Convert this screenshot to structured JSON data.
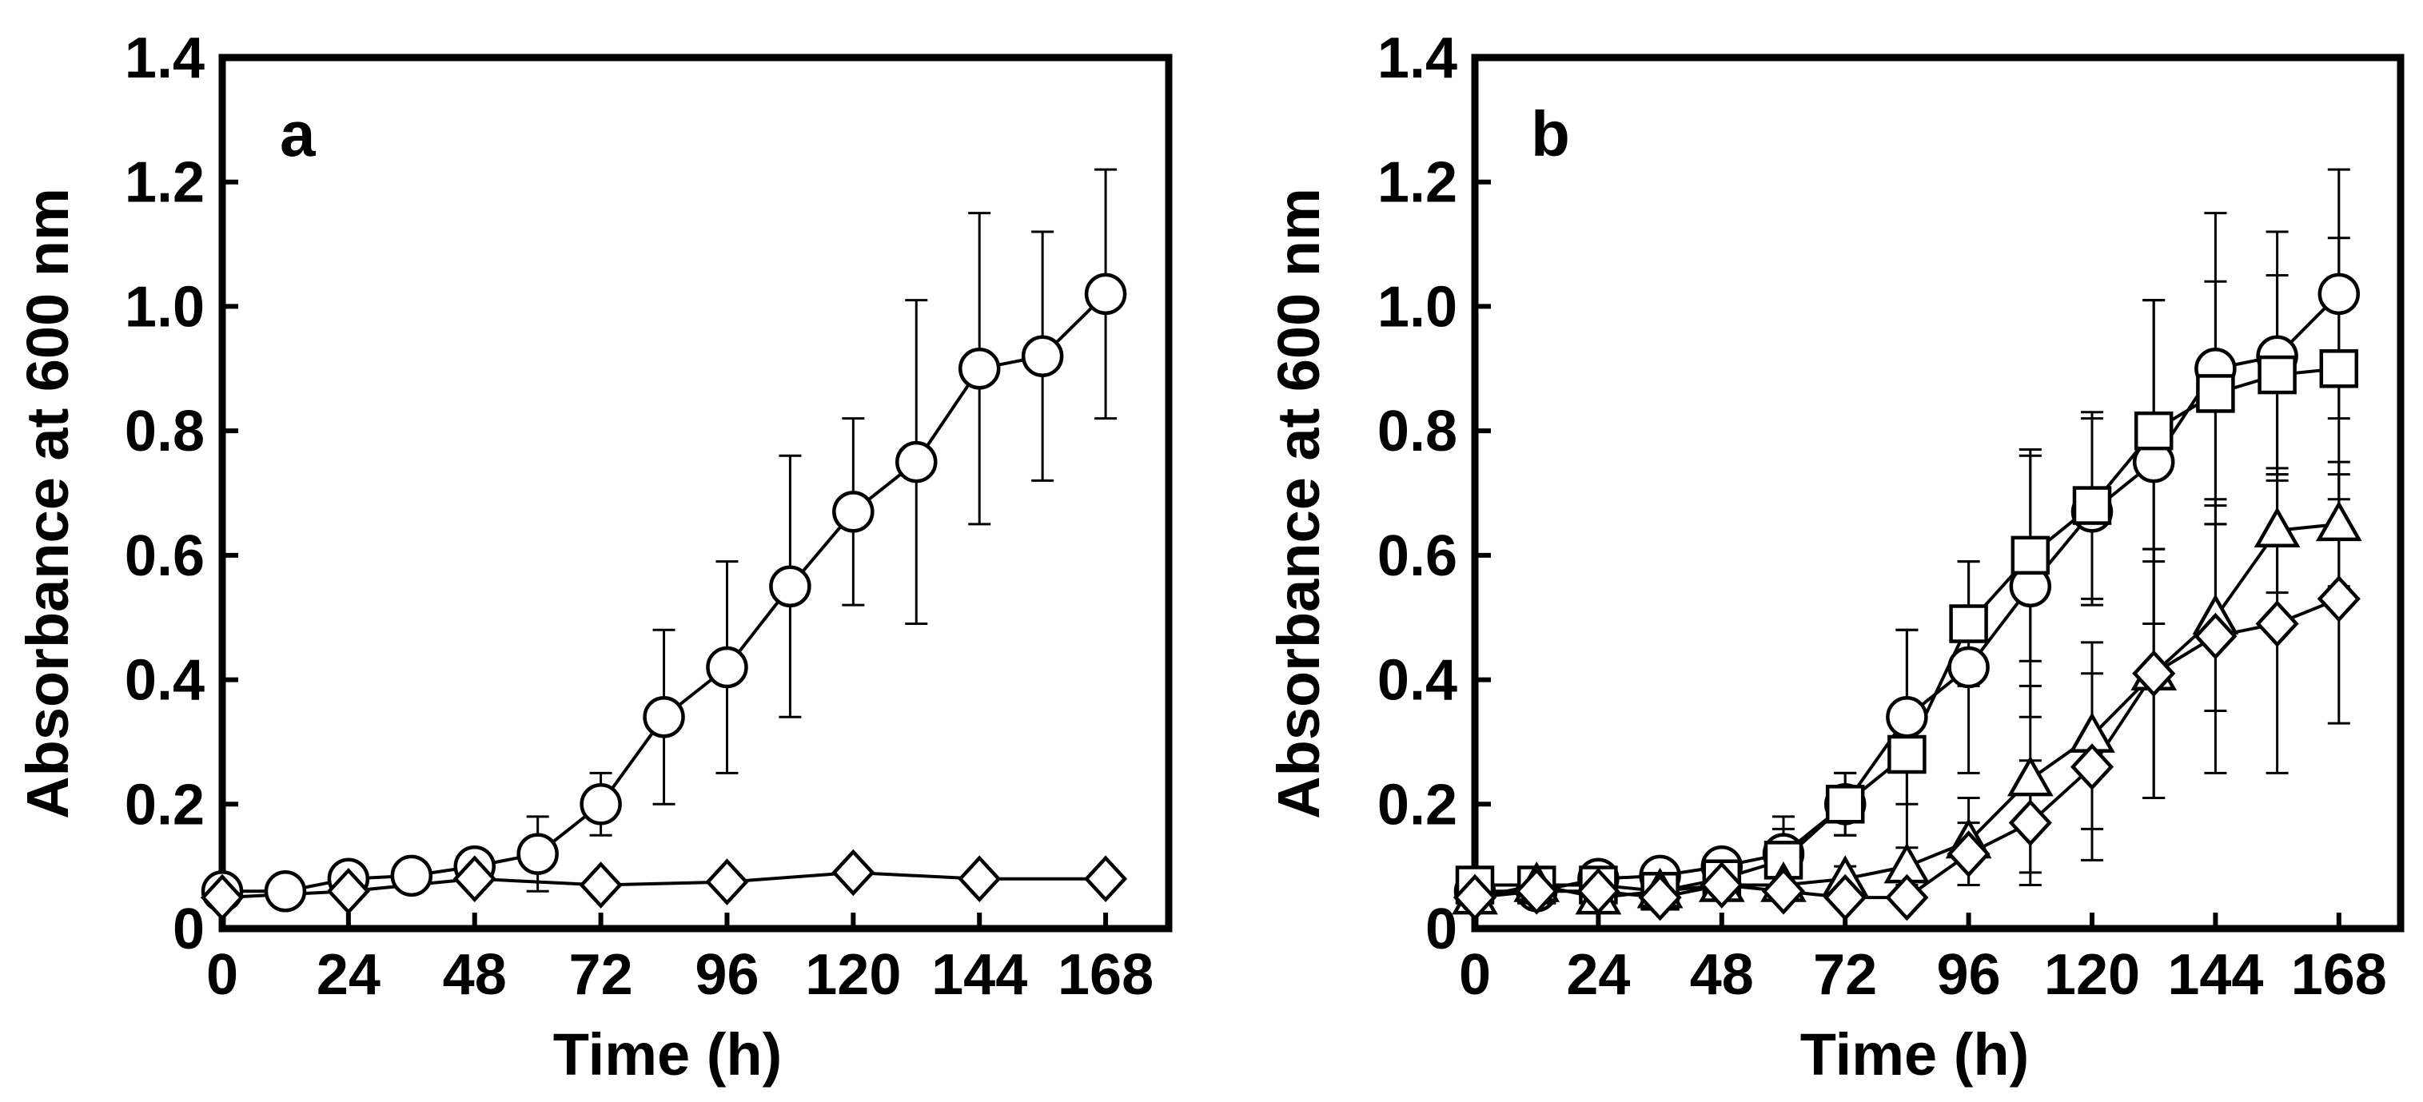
{
  "chart_data": [
    {
      "type": "line",
      "panel": "a",
      "xlabel": "Time (h)",
      "ylabel": "Absorbance at 600 nm",
      "xlim": [
        0,
        180
      ],
      "ylim": [
        0,
        1.4
      ],
      "xticks": [
        0,
        24,
        48,
        72,
        96,
        120,
        144,
        168
      ],
      "xtick_labels": [
        "0",
        "24",
        "48",
        "72",
        "96",
        "120",
        "144",
        "168"
      ],
      "yticks": [
        0,
        0.2,
        0.4,
        0.6,
        0.8,
        1.0,
        1.2,
        1.4
      ],
      "ytick_labels": [
        "0",
        "0.2",
        "0.4",
        "0.6",
        "0.8",
        "1.0",
        "1.2",
        "1.4"
      ],
      "series": [
        {
          "name": "circle",
          "marker": "circle",
          "x": [
            0,
            12,
            24,
            36,
            48,
            60,
            72,
            84,
            96,
            108,
            120,
            132,
            144,
            156,
            168
          ],
          "y": [
            0.06,
            0.06,
            0.08,
            0.085,
            0.1,
            0.12,
            0.2,
            0.34,
            0.42,
            0.55,
            0.67,
            0.75,
            0.9,
            0.92,
            1.02
          ],
          "err": [
            0.01,
            0.01,
            0.01,
            0.01,
            0.02,
            0.06,
            0.05,
            0.14,
            0.17,
            0.21,
            0.15,
            0.26,
            0.25,
            0.2,
            0.2
          ]
        },
        {
          "name": "diamond",
          "marker": "diamond",
          "x": [
            0,
            24,
            48,
            72,
            96,
            120,
            144,
            168
          ],
          "y": [
            0.05,
            0.06,
            0.08,
            0.07,
            0.075,
            0.09,
            0.08,
            0.08
          ],
          "err": [
            0,
            0,
            0,
            0,
            0,
            0,
            0,
            0
          ]
        }
      ]
    },
    {
      "type": "line",
      "panel": "b",
      "xlabel": "Time (h)",
      "ylabel": "Absorbance at 600 nm",
      "xlim": [
        0,
        180
      ],
      "ylim": [
        0,
        1.4
      ],
      "xticks": [
        0,
        24,
        48,
        72,
        96,
        120,
        144,
        168
      ],
      "xtick_labels": [
        "0",
        "24",
        "48",
        "72",
        "96",
        "120",
        "144",
        "168"
      ],
      "yticks": [
        0,
        0.2,
        0.4,
        0.6,
        0.8,
        1.0,
        1.2,
        1.4
      ],
      "ytick_labels": [
        "0",
        "0.2",
        "0.4",
        "0.6",
        "0.8",
        "1.0",
        "1.2",
        "1.4"
      ],
      "series": [
        {
          "name": "circle",
          "marker": "circle",
          "x": [
            0,
            12,
            24,
            36,
            48,
            60,
            72,
            84,
            96,
            108,
            120,
            132,
            144,
            156,
            168
          ],
          "y": [
            0.06,
            0.06,
            0.08,
            0.085,
            0.1,
            0.12,
            0.2,
            0.34,
            0.42,
            0.55,
            0.67,
            0.75,
            0.9,
            0.92,
            1.02
          ],
          "err": [
            0.01,
            0.01,
            0.01,
            0.01,
            0.02,
            0.06,
            0.05,
            0.14,
            0.17,
            0.21,
            0.15,
            0.26,
            0.25,
            0.2,
            0.2
          ]
        },
        {
          "name": "square",
          "marker": "square",
          "x": [
            0,
            12,
            24,
            36,
            48,
            60,
            72,
            84,
            96,
            108,
            120,
            132,
            144,
            156,
            168
          ],
          "y": [
            0.07,
            0.07,
            0.07,
            0.06,
            0.08,
            0.11,
            0.2,
            0.28,
            0.49,
            0.6,
            0.68,
            0.8,
            0.86,
            0.89,
            0.9
          ],
          "err": [
            0.01,
            0.01,
            0.01,
            0.01,
            0.02,
            0.05,
            0.05,
            0.2,
            0.1,
            0.17,
            0.15,
            0.21,
            0.18,
            0.16,
            0.21
          ]
        },
        {
          "name": "triangle",
          "marker": "triangle",
          "x": [
            0,
            12,
            24,
            36,
            48,
            60,
            72,
            84,
            96,
            108,
            120,
            132,
            144,
            156,
            168
          ],
          "y": [
            0.05,
            0.07,
            0.05,
            0.06,
            0.07,
            0.07,
            0.08,
            0.1,
            0.14,
            0.24,
            0.31,
            0.41,
            0.5,
            0.64,
            0.65
          ],
          "err": [
            0.01,
            0.01,
            0.01,
            0.01,
            0.01,
            0.01,
            0.02,
            0.03,
            0.07,
            0.15,
            0.15,
            0.2,
            0.15,
            0.1,
            0.1
          ]
        },
        {
          "name": "diamond",
          "marker": "diamond",
          "x": [
            0,
            12,
            24,
            36,
            48,
            60,
            72,
            84,
            96,
            108,
            120,
            132,
            144,
            156,
            168
          ],
          "y": [
            0.05,
            0.06,
            0.06,
            0.05,
            0.07,
            0.06,
            0.05,
            0.05,
            0.12,
            0.17,
            0.26,
            0.41,
            0.47,
            0.49,
            0.53
          ],
          "err": [
            0,
            0,
            0,
            0,
            0,
            0,
            0,
            0.01,
            0.05,
            0.1,
            0.15,
            0.2,
            0.22,
            0.24,
            0.2
          ]
        }
      ]
    }
  ]
}
